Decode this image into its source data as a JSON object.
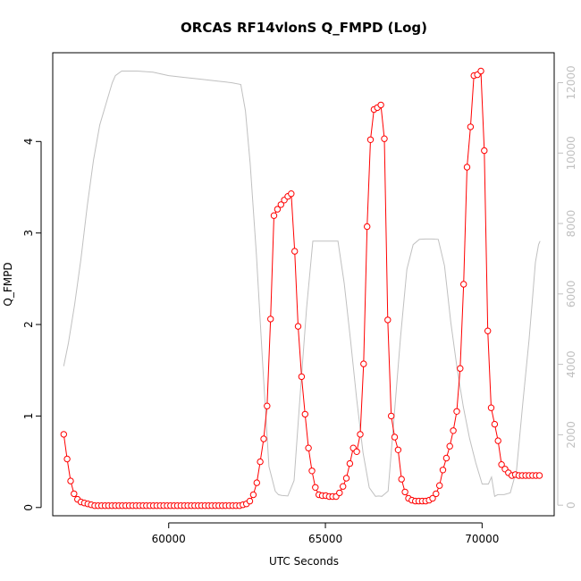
{
  "chart_data": {
    "type": "line",
    "title": "ORCAS RF14vlonS Q_FMPD (Log)",
    "xlabel": "UTC Seconds",
    "ylabel": "Q_FMPD",
    "y2label": "",
    "xlim": [
      56300,
      72300
    ],
    "ylim": [
      -0.09,
      4.97
    ],
    "y2lim": [
      -300,
      12850
    ],
    "grid": false,
    "legend": "none",
    "xticks": [
      60000,
      65000,
      70000
    ],
    "xtick_labels": [
      "60000",
      "65000",
      "70000"
    ],
    "yticks": [
      0,
      1,
      2,
      3,
      4
    ],
    "ytick_labels": [
      "0",
      "1",
      "2",
      "3",
      "4"
    ],
    "y2ticks": [
      0,
      2000,
      4000,
      6000,
      8000,
      10000,
      12000
    ],
    "y2tick_labels": [
      "0",
      "2000",
      "4000",
      "6000",
      "8000",
      "10000",
      "12000"
    ],
    "colors": {
      "series1": "#ff0000",
      "series2": "#c0c0c0",
      "axes": "#000000",
      "right_axis": "#c0c0c0"
    },
    "series": [
      {
        "axis": "left",
        "style": "line+open-circles",
        "x": [
          56650,
          56760,
          56870,
          56980,
          57090,
          57200,
          57310,
          57420,
          57530,
          57640,
          57750,
          57860,
          57970,
          58080,
          58190,
          58300,
          58410,
          58520,
          58630,
          58740,
          58850,
          58960,
          59070,
          59180,
          59290,
          59400,
          59510,
          59620,
          59730,
          59840,
          59950,
          60060,
          60170,
          60280,
          60390,
          60500,
          60610,
          60720,
          60830,
          60940,
          61050,
          61160,
          61270,
          61380,
          61490,
          61600,
          61710,
          61820,
          61930,
          62040,
          62150,
          62260,
          62370,
          62480,
          62590,
          62700,
          62810,
          62920,
          63030,
          63140,
          63250,
          63360,
          63470,
          63580,
          63690,
          63800,
          63910,
          64020,
          64130,
          64240,
          64350,
          64460,
          64570,
          64680,
          64790,
          64900,
          65010,
          65120,
          65230,
          65340,
          65450,
          65560,
          65670,
          65780,
          65890,
          66000,
          66110,
          66220,
          66330,
          66440,
          66550,
          66660,
          66770,
          66880,
          66990,
          67100,
          67210,
          67320,
          67430,
          67540,
          67650,
          67760,
          67870,
          67980,
          68090,
          68200,
          68310,
          68420,
          68530,
          68640,
          68750,
          68860,
          68970,
          69080,
          69190,
          69300,
          69410,
          69520,
          69630,
          69740,
          69850,
          69960,
          70070,
          70180,
          70290,
          70400,
          70510,
          70620,
          70730,
          70840,
          70950,
          71060,
          71170,
          71280,
          71390,
          71500,
          71610,
          71720,
          71830
        ],
        "y": [
          0.8,
          0.53,
          0.29,
          0.15,
          0.09,
          0.06,
          0.05,
          0.04,
          0.03,
          0.02,
          0.02,
          0.02,
          0.02,
          0.02,
          0.02,
          0.02,
          0.02,
          0.02,
          0.02,
          0.02,
          0.02,
          0.02,
          0.02,
          0.02,
          0.02,
          0.02,
          0.02,
          0.02,
          0.02,
          0.02,
          0.02,
          0.02,
          0.02,
          0.02,
          0.02,
          0.02,
          0.02,
          0.02,
          0.02,
          0.02,
          0.02,
          0.02,
          0.02,
          0.02,
          0.02,
          0.02,
          0.02,
          0.02,
          0.02,
          0.02,
          0.02,
          0.02,
          0.03,
          0.04,
          0.07,
          0.14,
          0.27,
          0.5,
          0.75,
          1.11,
          2.06,
          3.19,
          3.26,
          3.31,
          3.36,
          3.4,
          3.43,
          2.8,
          1.98,
          1.43,
          1.02,
          0.65,
          0.4,
          0.22,
          0.14,
          0.13,
          0.13,
          0.12,
          0.12,
          0.12,
          0.16,
          0.23,
          0.32,
          0.48,
          0.65,
          0.61,
          0.8,
          1.57,
          3.07,
          4.02,
          4.35,
          4.37,
          4.4,
          4.03,
          2.05,
          1.0,
          0.77,
          0.63,
          0.31,
          0.17,
          0.1,
          0.08,
          0.07,
          0.07,
          0.07,
          0.07,
          0.08,
          0.1,
          0.15,
          0.24,
          0.41,
          0.54,
          0.67,
          0.84,
          1.05,
          1.52,
          2.44,
          3.72,
          4.16,
          4.72,
          4.73,
          4.77,
          3.9,
          1.93,
          1.09,
          0.91,
          0.73,
          0.47,
          0.42,
          0.38,
          0.35,
          0.36,
          0.35,
          0.35,
          0.35,
          0.35,
          0.35,
          0.35,
          0.35
        ]
      },
      {
        "axis": "right",
        "style": "line",
        "x": [
          56650,
          56800,
          57000,
          57200,
          57400,
          57600,
          57800,
          58000,
          58200,
          58300,
          58500,
          59000,
          59500,
          60000,
          60500,
          61000,
          61500,
          62000,
          62300,
          62450,
          62600,
          62800,
          63000,
          63200,
          63400,
          63500,
          63600,
          63800,
          64000,
          64200,
          64400,
          64600,
          64800,
          65000,
          65200,
          65400,
          65600,
          65800,
          66000,
          66200,
          66400,
          66600,
          66700,
          66800,
          67000,
          67200,
          67400,
          67600,
          67800,
          68000,
          68200,
          68400,
          68600,
          68800,
          69000,
          69200,
          69400,
          69600,
          69800,
          70000,
          70200,
          70300,
          70400,
          70500,
          70700,
          70900,
          71100,
          71300,
          71500,
          71600,
          71700,
          71800,
          71850
        ],
        "y": [
          3950,
          4600,
          5700,
          7000,
          8500,
          9800,
          10800,
          11400,
          12000,
          12200,
          12330,
          12330,
          12300,
          12200,
          12150,
          12100,
          12050,
          12000,
          11950,
          11200,
          9700,
          7100,
          4000,
          1100,
          400,
          300,
          280,
          260,
          700,
          3200,
          5600,
          7500,
          7500,
          7500,
          7500,
          7500,
          6300,
          4700,
          3000,
          1500,
          500,
          250,
          260,
          250,
          400,
          2600,
          4800,
          6700,
          7400,
          7550,
          7560,
          7560,
          7550,
          6800,
          5200,
          3900,
          2800,
          1900,
          1200,
          600,
          600,
          800,
          250,
          300,
          300,
          350,
          1000,
          2900,
          4700,
          5800,
          6900,
          7400,
          7500
        ]
      }
    ]
  }
}
